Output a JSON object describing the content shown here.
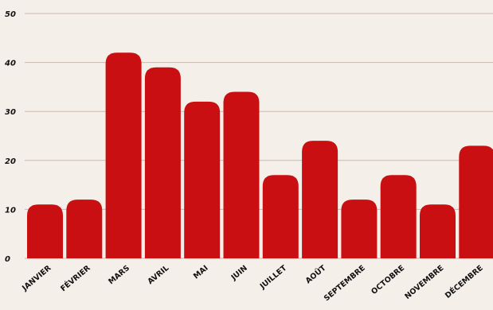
{
  "chart_data": {
    "type": "bar",
    "title": "",
    "xlabel": "",
    "ylabel": "",
    "categories": [
      "JANVIER",
      "FÉVRIER",
      "MARS",
      "AVRIL",
      "MAI",
      "JUIN",
      "JUILLET",
      "AOÛT",
      "SEPTEMBRE",
      "OCTOBRE",
      "NOVEMBRE",
      "DÉCEMBRE"
    ],
    "values": [
      11,
      12,
      42,
      39,
      32,
      34,
      17,
      24,
      12,
      17,
      11,
      23
    ],
    "ylim": [
      0,
      50
    ],
    "yticks": [
      0,
      10,
      20,
      30,
      40,
      50
    ],
    "grid": true,
    "legend": "none",
    "colors": {
      "bar": "#c90f12",
      "background": "#f5efe9",
      "grid": "#c9b9ae",
      "text": "#111111"
    }
  }
}
